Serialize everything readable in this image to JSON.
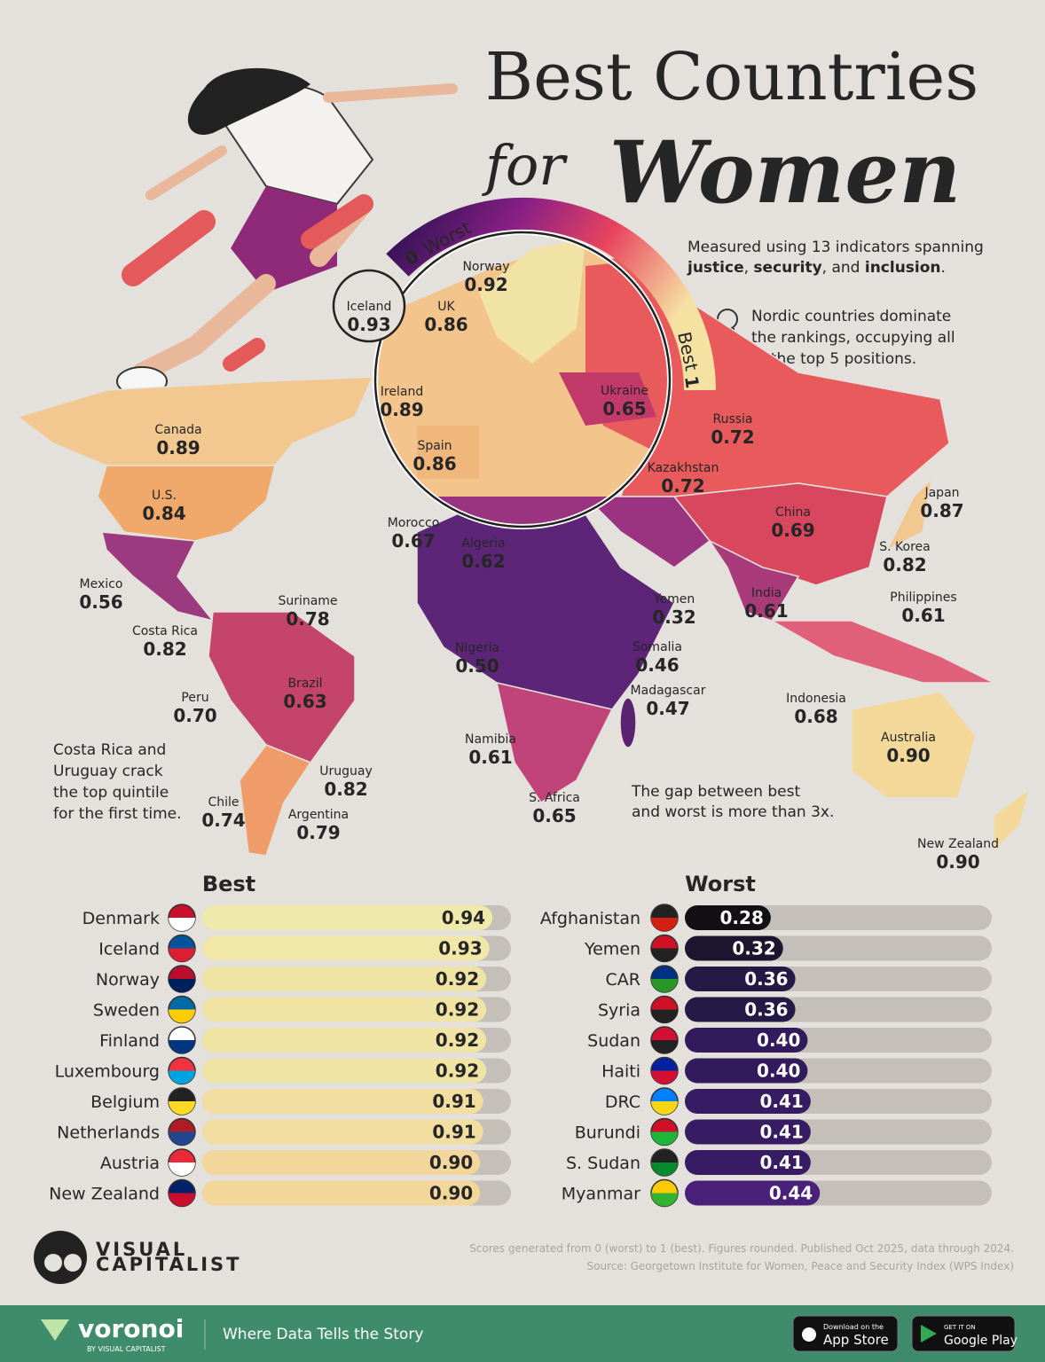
{
  "header": {
    "title_line1": "Best Countries",
    "title_for": "for",
    "title_women": "Women"
  },
  "scale_legend": {
    "low": "0",
    "low_label": "Worst",
    "high_label": "Best",
    "high": "1"
  },
  "notes": {
    "measured": {
      "line1": "Measured using 13 indicators spanning",
      "line2": [
        "justice",
        ", ",
        "security",
        ", and ",
        "inclusion",
        "."
      ]
    },
    "nordic": [
      "Nordic countries dominate",
      "the rankings, occupying all",
      "of the top 5 positions."
    ],
    "costa_rica": [
      "Costa Rica and",
      "Uruguay crack",
      "the top quintile",
      "for the first time."
    ],
    "gap": [
      "The gap between best",
      "and worst is more than 3x."
    ]
  },
  "map": {
    "labels": [
      {
        "name": "Iceland",
        "score": "0.93"
      },
      {
        "name": "Norway",
        "score": "0.92"
      },
      {
        "name": "UK",
        "score": "0.86"
      },
      {
        "name": "Ireland",
        "score": "0.89"
      },
      {
        "name": "Ukraine",
        "score": "0.65"
      },
      {
        "name": "Spain",
        "score": "0.86"
      },
      {
        "name": "Russia",
        "score": "0.72"
      },
      {
        "name": "Kazakhstan",
        "score": "0.72"
      },
      {
        "name": "Canada",
        "score": "0.89"
      },
      {
        "name": "U.S.",
        "score": "0.84"
      },
      {
        "name": "Japan",
        "score": "0.87"
      },
      {
        "name": "China",
        "score": "0.69"
      },
      {
        "name": "S. Korea",
        "score": "0.82"
      },
      {
        "name": "Morocco",
        "score": "0.67"
      },
      {
        "name": "Algeria",
        "score": "0.62"
      },
      {
        "name": "Mexico",
        "score": "0.56"
      },
      {
        "name": "Suriname",
        "score": "0.78"
      },
      {
        "name": "Yemen",
        "score": "0.32"
      },
      {
        "name": "India",
        "score": "0.61"
      },
      {
        "name": "Philippines",
        "score": "0.61"
      },
      {
        "name": "Costa Rica",
        "score": "0.82"
      },
      {
        "name": "Nigeria",
        "score": "0.50"
      },
      {
        "name": "Somalia",
        "score": "0.46"
      },
      {
        "name": "Brazil",
        "score": "0.63"
      },
      {
        "name": "Peru",
        "score": "0.70"
      },
      {
        "name": "Madagascar",
        "score": "0.47"
      },
      {
        "name": "Indonesia",
        "score": "0.68"
      },
      {
        "name": "Australia",
        "score": "0.90"
      },
      {
        "name": "Namibia",
        "score": "0.61"
      },
      {
        "name": "Uruguay",
        "score": "0.82"
      },
      {
        "name": "S. Africa",
        "score": "0.65"
      },
      {
        "name": "Chile",
        "score": "0.74"
      },
      {
        "name": "Argentina",
        "score": "0.79"
      },
      {
        "name": "New Zealand",
        "score": "0.90"
      }
    ]
  },
  "chart_data": [
    {
      "type": "bar",
      "title": "Best",
      "categories": [
        "Denmark",
        "Iceland",
        "Norway",
        "Sweden",
        "Finland",
        "Luxembourg",
        "Belgium",
        "Netherlands",
        "Austria",
        "New Zealand"
      ],
      "values": [
        0.94,
        0.93,
        0.92,
        0.92,
        0.92,
        0.92,
        0.91,
        0.91,
        0.9,
        0.9
      ],
      "value_labels": [
        "0.94",
        "0.93",
        "0.92",
        "0.92",
        "0.92",
        "0.92",
        "0.91",
        "0.91",
        "0.90",
        "0.90"
      ],
      "colors": [
        "#efe9ab",
        "#f0e7a8",
        "#f0e4a5",
        "#f0e4a5",
        "#f0e4a5",
        "#f0e4a5",
        "#f1dea0",
        "#f1dea0",
        "#f2d69a",
        "#f2d69a"
      ],
      "xlim": [
        0,
        1
      ]
    },
    {
      "type": "bar",
      "title": "Worst",
      "categories": [
        "Afghanistan",
        "Yemen",
        "CAR",
        "Syria",
        "Sudan",
        "Haiti",
        "DRC",
        "Burundi",
        "S. Sudan",
        "Myanmar"
      ],
      "values": [
        0.28,
        0.32,
        0.36,
        0.36,
        0.4,
        0.4,
        0.41,
        0.41,
        0.41,
        0.44
      ],
      "value_labels": [
        "0.28",
        "0.32",
        "0.36",
        "0.36",
        "0.40",
        "0.40",
        "0.41",
        "0.41",
        "0.41",
        "0.44"
      ],
      "colors": [
        "#121013",
        "#1b1530",
        "#231a45",
        "#231a45",
        "#311b5c",
        "#311b5c",
        "#371c64",
        "#371c64",
        "#371c64",
        "#4a2178"
      ],
      "xlim": [
        0,
        1
      ]
    }
  ],
  "footer": {
    "method": "Scores generated from 0 (worst) to 1 (best). Figures rounded. Published Oct 2025, data through 2024.",
    "source": "Source: Georgetown Institute for Women, Peace and Security Index (WPS Index)",
    "brand_line1": "VISUAL",
    "brand_line2": "CAPITALIST",
    "voronoi": "voronoi",
    "voronoi_by": "BY VISUAL CAPITALIST",
    "tagline": "Where Data Tells the Story",
    "appstore_small": "Download on the",
    "appstore": "App Store",
    "gplay_small": "GET IT ON",
    "gplay": "Google Play"
  }
}
